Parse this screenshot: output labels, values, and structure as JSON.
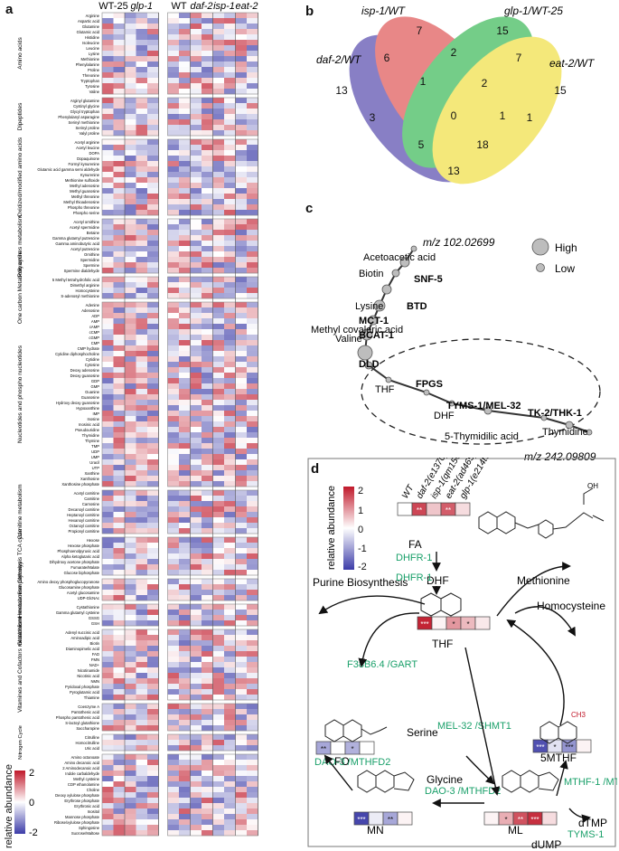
{
  "panels": {
    "a": "a",
    "b": "b",
    "c": "c",
    "d": "d"
  },
  "heatmap": {
    "left_groups": [
      {
        "label": "WT-25",
        "cols": 2
      },
      {
        "label": "glp-1",
        "cols": 3
      }
    ],
    "right_groups": [
      {
        "label": "WT",
        "cols": 2
      },
      {
        "label": "daf-2",
        "cols": 2
      },
      {
        "label": "isp-1",
        "cols": 2
      },
      {
        "label": "eat-2",
        "cols": 2
      }
    ],
    "categories": [
      {
        "name": "Amino acids",
        "rows": [
          "Arginine",
          "Aspartic acid",
          "Glutamine",
          "Glutamic acid",
          "Histidine",
          "Isoleucine",
          "Leucine",
          "Lysine",
          "Methionine",
          "Phenylalanine",
          "Proline",
          "Threonine",
          "Tryptophan",
          "Tyrosine",
          "Valine"
        ]
      },
      {
        "name": "Dipeptides",
        "rows": [
          "Arginyl glutamine",
          "Cystinyl glycine",
          "Glycyl tryptophan",
          "Phenylalanyl asparagine",
          "Serinyl methionine",
          "Serinyl proline",
          "Valyl proline"
        ]
      },
      {
        "name": "Oxidized/modified amino acids",
        "rows": [
          "Acetyl arginine",
          "Acetyl leucine",
          "DOPA",
          "Dopaquinone",
          "Formyl kynurenine",
          "Glutamic acid gamma semi aldehyde",
          "Kynurenine",
          "Methionine sulfoxide",
          "Methyl adenosine",
          "Methyl guanosine",
          "Methyl threonine",
          "Methyl thioadenosine",
          "Phospho threonine",
          "Phospho serine"
        ]
      },
      {
        "name": "Polyamines metabolism",
        "rows": [
          "Acetyl ornithine",
          "Acetyl spermidine",
          "Betaine",
          "Gamma glutamyl putrescine",
          "Gamma aminobutyric acid",
          "Acetyl putrescine",
          "Ornithine",
          "Spermidine",
          "Spermine",
          "Spermine dialdehyde"
        ]
      },
      {
        "name": "One carbon Metabolic cycle",
        "rows": [
          "5 Methyl tetrahydrofolic acid",
          "Dimethyl arginine",
          "Homocysteine",
          "S-adenosyl methionine"
        ]
      },
      {
        "name": "Nucleotides and phospho nucleotides",
        "rows": [
          "Adenine",
          "Adenosine",
          "ADP",
          "AMP",
          "cAMP",
          "cCMP",
          "cGMP",
          "CMP",
          "CMP hydrate",
          "Cytidine diphosphocholine",
          "Cytidine",
          "Cytosine",
          "Deoxy adenosine",
          "Deoxy guanosine",
          "GDP",
          "GMP",
          "Guanine",
          "Guanosine",
          "Hydroxy deoxy guanosine",
          "Hypoxanthine",
          "IMP",
          "Inosine",
          "Inosinic acid",
          "Pseudouridine",
          "Thymidine",
          "Thymine",
          "TMP",
          "UDP",
          "UMP",
          "Uracil",
          "UTP",
          "Xanthine",
          "Xanthosine",
          "Xanthosine phosphate"
        ]
      },
      {
        "name": "Carnitine metabolism",
        "rows": [
          "Acetyl carnitine",
          "Carnitine",
          "Carnosine",
          "Decanoyl carnitine",
          "Heptanoyl carnitine",
          "Hexanoyl carnitine",
          "Octanoyl carnitine",
          "Propionyl carnitine"
        ]
      },
      {
        "name": "Glycolysis TCA cycle",
        "rows": [
          "Hexose",
          "Hexose phosphate",
          "Phosphoenolpyruvic acid",
          "Alpha ketoglutaric acid",
          "Dihydroxy acetone phosphate",
          "Fumarate/Malate",
          "Glucose biphosphate"
        ]
      },
      {
        "name": "Hexosamine pathway",
        "rows": [
          "Amino deoxy phosphoglucopyranose",
          "Glucosamine phosphate",
          "Acetyl glucosamine",
          "UDP-GlcNAc"
        ]
      },
      {
        "name": "Glutathione metabolism",
        "rows": [
          "Cystathionine",
          "Gamma glutamyl cysteine",
          "GSSG",
          "GSH"
        ]
      },
      {
        "name": "Vitamines and Cofactors metabolism",
        "rows": [
          "Adenyl succinic acid",
          "Aminoadipic acid",
          "Biotin",
          "Diaminopimelic acid",
          "FAD",
          "FMN",
          "NAD+",
          "Nicotinamide",
          "Nicotinic acid",
          "NMN",
          "Pyridoxal phosphate",
          "Pyroglutamic acid",
          "Thiamine"
        ]
      },
      {
        "name": "",
        "rows": [
          "Coenzyme A",
          "Pantothenic acid",
          "Phospho pantothenic acid",
          "S-lactoyl glutathione",
          "Saccharopine"
        ]
      },
      {
        "name": "Nitrogen Cycle",
        "rows": [
          "Citrulline",
          "Homocitrulline",
          "Uric acid"
        ]
      },
      {
        "name": "Miscellaneous",
        "rows": [
          "Amino octanoate",
          "Amino decanoic acid",
          "2 Aminodecanoic acid",
          "Indole carbaldehyde",
          "Methyl cysteine",
          "CDP ethanolamine",
          "Choline",
          "Deoxy xylulose phosphate",
          "Erythrose phosphate",
          "Erythronic acid",
          "Inositol",
          "Mannose phosphate",
          "Ribose/xylulose phosphate",
          "Sphingosine",
          "Sucrose/Maltose"
        ]
      }
    ],
    "legend": {
      "title": "relative abundance",
      "ticks": [
        "2",
        "0",
        "-2"
      ]
    },
    "colors": {
      "low": "#3c3ca8",
      "mid": "#ffffff",
      "high": "#c0182a"
    }
  },
  "venn": {
    "labels": {
      "daf2": "daf-2/WT",
      "isp1": "isp-1/WT",
      "glp1": "glp-1/WT-25",
      "eat2": "eat-2/WT"
    },
    "counts": [
      "13",
      "7",
      "15",
      "15",
      "6",
      "2",
      "7",
      "3",
      "1",
      "1",
      "1",
      "2",
      "5",
      "18",
      "0",
      "13"
    ],
    "colors": {
      "daf2": "#5b4fb0",
      "isp1": "#e05a5a",
      "glp1": "#3fbb5b",
      "eat2": "#f0e048"
    }
  },
  "pathway": {
    "top_mz": "m/z 102.02699",
    "bottom_mz": "m/z 242.09809",
    "legend_high": "High",
    "legend_low": "Low",
    "metabolites": [
      "Acetoacetic acid",
      "Biotin",
      "Lysine",
      "Valine",
      "Methyl covaleric acid",
      "THF",
      "DHF",
      "5-Thymidilic acid",
      "Thymidine"
    ],
    "enzymes": [
      "SNF-5",
      "BTD",
      "MCT-1",
      "BCAT-1",
      "DLD",
      "FPGS",
      "TYMS-1/MEL-32",
      "TK-2/THK-1"
    ]
  },
  "folate": {
    "legend_title": "relative abundance",
    "legend_ticks": [
      "2",
      "1",
      "0",
      "-1",
      "-2"
    ],
    "strains": [
      "WT",
      "daf-2(e1370)",
      "isp-1(qm150)",
      "eat-2(ad465)",
      "glp-1(e214ts)"
    ],
    "FA": {
      "label": "FA",
      "stars": [
        "",
        "**",
        "",
        "**",
        ""
      ],
      "values": [
        0,
        1.6,
        0.5,
        1.4,
        0.3
      ]
    },
    "THF": {
      "label": "THF",
      "stars": [
        "***",
        "",
        "*",
        "*",
        ""
      ],
      "values": [
        1.9,
        0.1,
        0.9,
        0.6,
        0.2
      ]
    },
    "FO": {
      "label": "FO",
      "stars": [
        "**",
        "",
        "*",
        ""
      ],
      "values": [
        -0.9,
        0,
        -0.8,
        0
      ]
    },
    "5MTHF": {
      "label": "5MTHF",
      "stars": [
        "***",
        "*",
        "***",
        ""
      ],
      "values": [
        -1.8,
        -0.3,
        -1.1,
        0.1
      ]
    },
    "MN": {
      "label": "MN",
      "stars": [
        "***",
        "",
        "**",
        ""
      ],
      "values": [
        -1.9,
        -0.2,
        -0.9,
        0.1
      ]
    },
    "ML": {
      "label": "ML",
      "stars": [
        "",
        "*",
        "**",
        "***",
        ""
      ],
      "values": [
        0.1,
        0.7,
        1.5,
        1.8,
        0.3
      ]
    },
    "arrows": {
      "dhfr1_a": "DHFR-1",
      "dhf": "DHF",
      "dhfr1_b": "DHFR-1",
      "purine": "Purine Biosynthesis",
      "gart": "F38B6.4 /GART",
      "methionine": "Methionine",
      "homocysteine": "Homocysteine",
      "serine": "Serine",
      "glycine": "Glycine",
      "shmt": "MEL-32 /SHMT1",
      "dao3a": "DAO-3 /MTHFD2",
      "dao3b": "DAO-3 /MTHFD2",
      "mthfr": "MTHF-1 /MTHFR",
      "dtmp": "dTMP",
      "tyms": "TYMS-1",
      "dump": "dUMP"
    }
  }
}
